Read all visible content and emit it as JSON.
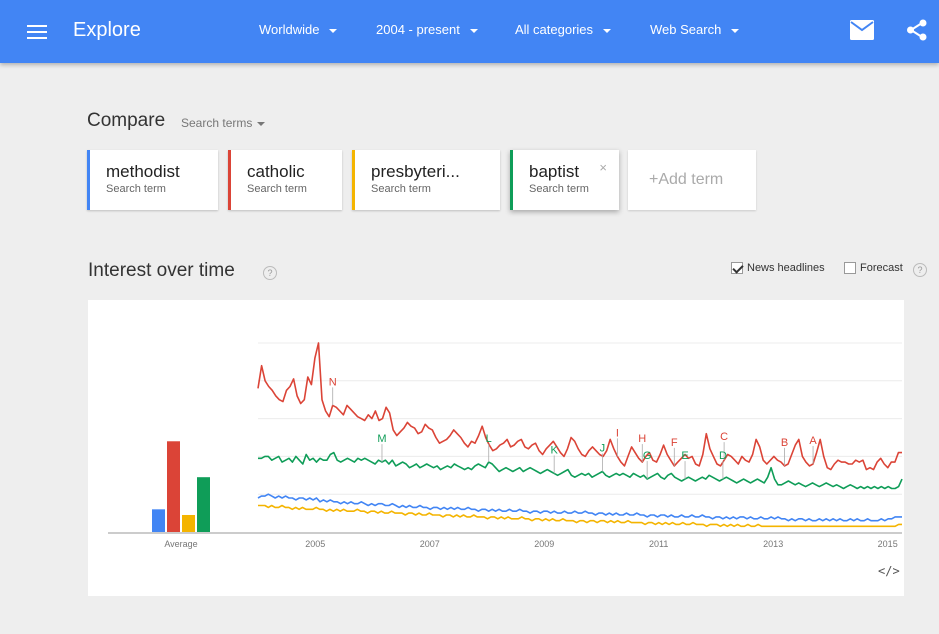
{
  "header": {
    "title": "Explore",
    "filters": [
      "Worldwide",
      "2004 - present",
      "All categories",
      "Web Search"
    ],
    "menu_icon": "hamburger-icon",
    "mail_icon": "mail-icon",
    "share_icon": "share-icon"
  },
  "compare": {
    "label": "Compare",
    "dropdown": "Search terms",
    "terms": [
      {
        "name": "methodist",
        "sub": "Search term",
        "color": "#4285f4"
      },
      {
        "name": "catholic",
        "sub": "Search term",
        "color": "#db4437"
      },
      {
        "name": "presbyteri...",
        "sub": "Search term",
        "color": "#f4b400"
      },
      {
        "name": "baptist",
        "sub": "Search term",
        "color": "#0f9d58"
      }
    ],
    "close_glyph": "×",
    "add_term": "+Add term"
  },
  "interest": {
    "title": "Interest over time",
    "help": "?",
    "news_headlines": "News headlines",
    "news_checked": true,
    "forecast": "Forecast",
    "forecast_checked": false,
    "embed": "</>"
  },
  "chart_data": {
    "type": "line",
    "average_label": "Average",
    "averages": [
      {
        "term": "methodist",
        "value": 12,
        "color": "#4285f4"
      },
      {
        "term": "catholic",
        "value": 48,
        "color": "#db4437"
      },
      {
        "term": "presbyterian",
        "value": 9,
        "color": "#f4b400"
      },
      {
        "term": "baptist",
        "value": 29,
        "color": "#0f9d58"
      }
    ],
    "x_ticks": [
      "2005",
      "2007",
      "2009",
      "2011",
      "2013",
      "2015"
    ],
    "x_range": [
      2004.0,
      2015.25
    ],
    "y_range": [
      0,
      100
    ],
    "grid": true,
    "series": [
      {
        "name": "catholic",
        "color": "#db4437",
        "values": [
          76,
          88,
          80,
          77,
          75,
          72,
          70,
          69,
          75,
          77,
          81,
          72,
          68,
          70,
          82,
          78,
          92,
          100,
          70,
          64,
          61,
          67,
          66,
          64,
          62,
          67,
          65,
          63,
          61,
          60,
          59,
          62,
          60,
          64,
          59,
          60,
          66,
          63,
          54,
          51,
          53,
          55,
          58,
          56,
          55,
          52,
          53,
          57,
          55,
          54,
          50,
          47,
          48,
          49,
          51,
          54,
          52,
          50,
          47,
          45,
          48,
          47,
          51,
          56,
          50,
          46,
          43,
          44,
          46,
          47,
          49,
          45,
          46,
          48,
          49,
          45,
          44,
          46,
          47,
          43,
          41,
          44,
          46,
          48,
          45,
          42,
          40,
          44,
          50,
          48,
          44,
          41,
          40,
          43,
          45,
          43,
          41,
          40,
          43,
          49,
          44,
          40,
          37,
          35,
          40,
          45,
          42,
          39,
          37,
          40,
          42,
          38,
          37,
          41,
          46,
          41,
          38,
          35,
          37,
          39,
          41,
          39,
          40,
          36,
          35,
          41,
          52,
          44,
          40,
          36,
          35,
          38,
          41,
          40,
          38,
          36,
          40,
          38,
          37,
          41,
          49,
          45,
          38,
          36,
          38,
          40,
          38,
          37,
          35,
          36,
          41,
          46,
          49,
          40,
          37,
          35,
          36,
          42,
          49,
          40,
          34,
          33,
          36,
          38,
          37,
          37,
          36,
          36,
          38,
          37,
          38,
          33,
          34,
          33,
          37,
          39,
          36,
          34,
          37,
          37,
          42,
          42
        ]
      },
      {
        "name": "baptist",
        "color": "#0f9d58",
        "values": [
          39,
          39,
          40,
          40,
          38,
          39,
          40,
          37,
          38,
          39,
          37,
          40,
          38,
          36,
          41,
          38,
          39,
          37,
          39,
          38,
          38,
          41,
          42,
          38,
          37,
          38,
          39,
          38,
          37,
          39,
          38,
          39,
          38,
          37,
          36,
          38,
          37,
          38,
          36,
          38,
          35,
          36,
          37,
          36,
          34,
          35,
          36,
          34,
          35,
          36,
          35,
          34,
          35,
          33,
          34,
          35,
          34,
          36,
          35,
          34,
          33,
          34,
          33,
          35,
          36,
          35,
          34,
          37,
          36,
          34,
          32,
          33,
          34,
          33,
          32,
          33,
          34,
          32,
          33,
          34,
          33,
          32,
          31,
          32,
          33,
          32,
          31,
          30,
          31,
          32,
          33,
          30,
          29,
          30,
          31,
          30,
          31,
          29,
          30,
          31,
          32,
          30,
          29,
          30,
          31,
          30,
          31,
          30,
          29,
          31,
          30,
          29,
          30,
          28,
          29,
          30,
          31,
          29,
          28,
          30,
          31,
          29,
          28,
          27,
          28,
          29,
          28,
          27,
          28,
          29,
          28,
          30,
          29,
          28,
          27,
          28,
          29,
          28,
          27,
          26,
          27,
          28,
          27,
          26,
          27,
          28,
          27,
          26,
          29,
          34,
          28,
          25,
          25,
          26,
          27,
          26,
          25,
          26,
          25,
          24,
          25,
          26,
          25,
          24,
          25,
          26,
          25,
          24,
          25,
          24,
          23,
          24,
          25,
          24,
          23,
          24,
          23,
          24,
          23,
          24,
          23,
          24,
          23,
          24,
          23,
          23,
          24,
          28
        ]
      },
      {
        "name": "methodist",
        "color": "#4285f4",
        "values": [
          18,
          19,
          19,
          20,
          19,
          18,
          19,
          18,
          19,
          18,
          18,
          17,
          18,
          18,
          17,
          18,
          17,
          18,
          16,
          17,
          16,
          17,
          16,
          16,
          15,
          16,
          15,
          16,
          15,
          15,
          16,
          15,
          14,
          15,
          14,
          15,
          15,
          14,
          14,
          15,
          14,
          13,
          14,
          13,
          14,
          13,
          13,
          14,
          13,
          13,
          12,
          13,
          13,
          12,
          13,
          12,
          13,
          12,
          13,
          12,
          12,
          13,
          12,
          12,
          11,
          12,
          12,
          11,
          12,
          11,
          12,
          11,
          11,
          12,
          11,
          11,
          12,
          11,
          11,
          10,
          11,
          11,
          10,
          11,
          11,
          10,
          11,
          10,
          10,
          11,
          10,
          10,
          11,
          10,
          10,
          11,
          10,
          10,
          9,
          10,
          10,
          9,
          10,
          9,
          10,
          9,
          9,
          10,
          9,
          9,
          10,
          9,
          9,
          8,
          9,
          9,
          8,
          9,
          9,
          8,
          9,
          8,
          8,
          9,
          8,
          8,
          9,
          8,
          8,
          9,
          8,
          8,
          7,
          8,
          8,
          7,
          8,
          7,
          8,
          7,
          8,
          8,
          7,
          8,
          7,
          7,
          8,
          7,
          7,
          8,
          7,
          8,
          7,
          7,
          6,
          7,
          6,
          7,
          7,
          6,
          7,
          6,
          6,
          7,
          6,
          7,
          6,
          7,
          6,
          7,
          6,
          6,
          7,
          6,
          7,
          6,
          6,
          7,
          6,
          6,
          6,
          7,
          6,
          7,
          7,
          8,
          8,
          8
        ]
      },
      {
        "name": "presbyterian",
        "color": "#f4b400",
        "values": [
          14,
          14,
          14,
          13,
          14,
          13,
          13,
          14,
          13,
          13,
          12,
          13,
          12,
          13,
          12,
          12,
          12,
          13,
          12,
          12,
          11,
          12,
          11,
          12,
          11,
          12,
          11,
          11,
          11,
          12,
          11,
          11,
          10,
          11,
          11,
          10,
          11,
          10,
          10,
          11,
          10,
          10,
          10,
          9,
          10,
          10,
          9,
          10,
          9,
          9,
          10,
          9,
          9,
          9,
          8,
          9,
          9,
          8,
          9,
          8,
          9,
          8,
          8,
          9,
          8,
          8,
          8,
          7,
          8,
          8,
          7,
          8,
          7,
          8,
          7,
          7,
          7,
          8,
          7,
          7,
          6,
          7,
          7,
          6,
          7,
          6,
          7,
          6,
          6,
          7,
          6,
          6,
          6,
          5,
          6,
          6,
          5,
          6,
          6,
          5,
          6,
          6,
          5,
          6,
          5,
          6,
          5,
          5,
          6,
          5,
          5,
          5,
          5,
          4,
          5,
          5,
          4,
          5,
          4,
          5,
          4,
          5,
          4,
          4,
          5,
          4,
          4,
          5,
          4,
          4,
          4,
          3,
          4,
          4,
          4,
          3,
          4,
          3,
          4,
          3,
          4,
          3,
          3,
          4,
          3,
          3,
          4,
          3,
          3,
          3,
          3,
          3,
          3,
          3,
          3,
          3,
          3,
          3,
          3,
          3,
          3,
          3,
          3,
          3,
          3,
          3,
          3,
          3,
          3,
          3,
          3,
          3,
          3,
          3,
          3,
          3,
          3,
          3,
          3,
          3,
          3,
          3,
          3,
          3,
          3,
          3,
          3,
          4,
          4
        ]
      }
    ],
    "annotations": [
      {
        "letter": "N",
        "series": "catholic",
        "x": 2005.3
      },
      {
        "letter": "M",
        "series": "baptist",
        "x": 2006.15
      },
      {
        "letter": "L",
        "series": "baptist",
        "x": 2008.05
      },
      {
        "letter": "K",
        "series": "baptist",
        "x": 2009.2
      },
      {
        "letter": "J",
        "series": "baptist",
        "x": 2010.0
      },
      {
        "letter": "I",
        "series": "catholic",
        "x": 2010.3
      },
      {
        "letter": "H",
        "series": "catholic",
        "x": 2010.7
      },
      {
        "letter": "G",
        "series": "baptist",
        "x": 2010.8
      },
      {
        "letter": "F",
        "series": "catholic",
        "x": 2011.3
      },
      {
        "letter": "E",
        "series": "baptist",
        "x": 2011.45
      },
      {
        "letter": "C",
        "series": "catholic",
        "x": 2012.15
      },
      {
        "letter": "D",
        "series": "baptist",
        "x": 2012.15
      },
      {
        "letter": "B",
        "series": "catholic",
        "x": 2013.2
      },
      {
        "letter": "A",
        "series": "catholic",
        "x": 2013.7
      }
    ]
  }
}
